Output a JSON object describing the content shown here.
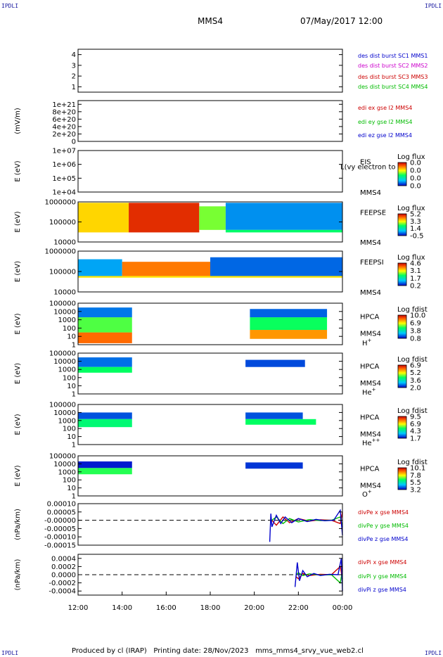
{
  "header": {
    "corner_label": "IPDLI",
    "mission": "MMS4",
    "datetime": "07/May/2017 12:00"
  },
  "footer": {
    "produced_by": "Produced by cl (IRAP)",
    "printing_date": "Printing date: 28/Nov/2023",
    "file_name": "mms_mms4_srvy_vue_web2.cl"
  },
  "x_axis": {
    "ticks": [
      "12:00",
      "14:00",
      "16:00",
      "18:00",
      "20:00",
      "22:00",
      "00:00"
    ],
    "hours": [
      12,
      14,
      16,
      18,
      20,
      22,
      24
    ]
  },
  "chart_data": [
    {
      "type": "line",
      "id": "des-dist",
      "ylabel": "",
      "ylim": [
        0.5,
        4.5
      ],
      "yticks": [
        "1",
        "2",
        "3",
        "4"
      ],
      "series": [
        {
          "name": "des dist burst SC1 MMS1",
          "color": "#0000cc",
          "values": []
        },
        {
          "name": "des dist burst SC2 MMS2",
          "color": "#cc00cc",
          "values": []
        },
        {
          "name": "des dist burst SC3 MMS3",
          "color": "#cc0000",
          "values": []
        },
        {
          "name": "des dist burst SC4 MMS4",
          "color": "#00bb00",
          "values": []
        }
      ]
    },
    {
      "type": "line",
      "id": "edi-e",
      "ylabel": "(mV/m)",
      "ylim": [
        0,
        1.1e+21
      ],
      "yticks": [
        "0",
        "2e+20",
        "4e+20",
        "6e+20",
        "8e+20",
        "1e+21"
      ],
      "series": [
        {
          "name": "edi ex gse l2 MMS4",
          "color": "#cc0000",
          "values": []
        },
        {
          "name": "edi ey gse l2 MMS4",
          "color": "#00bb00",
          "values": []
        },
        {
          "name": "edi ez gse l2 MMS4",
          "color": "#0000cc",
          "values": []
        }
      ]
    },
    {
      "type": "heatmap",
      "id": "eis",
      "ylabel": "E (eV)",
      "log_y": true,
      "ylim": [
        10000.0,
        10000000.0
      ],
      "yticks": [
        "1e+04",
        "1e+05",
        "1e+06",
        "1e+07"
      ],
      "instrument": "EIS",
      "spacecraft": "MMS4",
      "overlay_text": "L(vy electron to",
      "colorbar": {
        "title": "Log flux",
        "ticks": [
          "0.0",
          "0.0",
          "0.0",
          "0.0"
        ]
      },
      "segments": []
    },
    {
      "type": "heatmap",
      "id": "feepse",
      "ylabel": "E (eV)",
      "log_y": true,
      "ylim": [
        10000.0,
        1000000.0
      ],
      "yticks": [
        "10000",
        "100000",
        "1000000"
      ],
      "instrument": "FEEPSE",
      "spacecraft": "MMS4",
      "colorbar": {
        "title": "Log flux",
        "ticks": [
          "5.2",
          "3.3",
          "1.4",
          "-0.5"
        ]
      },
      "segments": [
        {
          "x": [
            12.0,
            14.3
          ],
          "e": [
            30000.0,
            900000.0
          ],
          "flux": 3.5
        },
        {
          "x": [
            14.3,
            17.5
          ],
          "e": [
            30000.0,
            900000.0
          ],
          "flux": 4.8
        },
        {
          "x": [
            17.5,
            18.7
          ],
          "e": [
            40000.0,
            600000.0
          ],
          "flux": 2.6
        },
        {
          "x": [
            18.7,
            24.0
          ],
          "e": [
            40000.0,
            900000.0
          ],
          "flux": 0.4
        },
        {
          "x": [
            18.7,
            24.0
          ],
          "e": [
            30000.0,
            40000.0
          ],
          "flux": 2.0
        }
      ]
    },
    {
      "type": "heatmap",
      "id": "feepsi",
      "ylabel": "E (eV)",
      "log_y": true,
      "ylim": [
        10000.0,
        1000000.0
      ],
      "yticks": [
        "10000",
        "100000",
        "1000000"
      ],
      "instrument": "FEEPSI",
      "spacecraft": "MMS4",
      "colorbar": {
        "title": "Log flux",
        "ticks": [
          "4.6",
          "3.1",
          "1.7",
          "0.2"
        ]
      },
      "segments": [
        {
          "x": [
            12.0,
            14.0
          ],
          "e": [
            60000.0,
            400000.0
          ],
          "flux": 1.0
        },
        {
          "x": [
            14.0,
            18.0
          ],
          "e": [
            60000.0,
            300000.0
          ],
          "flux": 3.8
        },
        {
          "x": [
            18.0,
            24.0
          ],
          "e": [
            60000.0,
            500000.0
          ],
          "flux": 0.7
        },
        {
          "x": [
            12.0,
            24.0
          ],
          "e": [
            50000.0,
            60000.0
          ],
          "flux": 3.2
        }
      ]
    },
    {
      "type": "heatmap",
      "id": "hpca-h",
      "ylabel": "E (eV)",
      "log_y": true,
      "ylim": [
        1,
        100000.0
      ],
      "yticks": [
        "1",
        "10",
        "100",
        "1000",
        "10000",
        "100000"
      ],
      "instrument": "HPCA",
      "spacecraft": "MMS4",
      "species": "H",
      "species_sup": "+",
      "colorbar": {
        "title": "Log fdist",
        "ticks": [
          "10.0",
          "6.9",
          "3.8",
          "0.8"
        ]
      },
      "segments": [
        {
          "x": [
            12.0,
            14.45
          ],
          "e": [
            1.5,
            30
          ],
          "flux": 8.5
        },
        {
          "x": [
            12.0,
            14.45
          ],
          "e": [
            30,
            2000
          ],
          "flux": 5.5
        },
        {
          "x": [
            12.0,
            14.45
          ],
          "e": [
            2000,
            30000
          ],
          "flux": 2.0
        },
        {
          "x": [
            19.8,
            23.3
          ],
          "e": [
            5,
            60
          ],
          "flux": 8.0
        },
        {
          "x": [
            19.8,
            23.3
          ],
          "e": [
            60,
            2000
          ],
          "flux": 5.0
        },
        {
          "x": [
            19.8,
            23.3
          ],
          "e": [
            2000,
            20000
          ],
          "flux": 1.8
        }
      ]
    },
    {
      "type": "heatmap",
      "id": "hpca-he",
      "ylabel": "E (eV)",
      "log_y": true,
      "ylim": [
        1,
        100000.0
      ],
      "yticks": [
        "1",
        "10",
        "100",
        "1000",
        "10000",
        "100000"
      ],
      "instrument": "HPCA",
      "spacecraft": "MMS4",
      "species": "He",
      "species_sup": "+",
      "colorbar": {
        "title": "Log fdist",
        "ticks": [
          "6.9",
          "5.2",
          "3.6",
          "2.0"
        ]
      },
      "segments": [
        {
          "x": [
            12.0,
            14.45
          ],
          "e": [
            2000,
            30000
          ],
          "flux": 2.6
        },
        {
          "x": [
            12.0,
            14.45
          ],
          "e": [
            400,
            2000
          ],
          "flux": 4.2
        },
        {
          "x": [
            19.6,
            22.3
          ],
          "e": [
            2000,
            15000
          ],
          "flux": 2.4
        }
      ]
    },
    {
      "type": "heatmap",
      "id": "hpca-hepp",
      "ylabel": "E (eV)",
      "log_y": true,
      "ylim": [
        1,
        100000.0
      ],
      "yticks": [
        "1",
        "10",
        "100",
        "1000",
        "10000",
        "100000"
      ],
      "instrument": "HPCA",
      "spacecraft": "MMS4",
      "species": "He",
      "species_sup": "++",
      "colorbar": {
        "title": "Log fdist",
        "ticks": [
          "9.5",
          "6.9",
          "4.3",
          "1.7"
        ]
      },
      "segments": [
        {
          "x": [
            12.0,
            14.45
          ],
          "e": [
            1500,
            10000
          ],
          "flux": 2.4
        },
        {
          "x": [
            12.0,
            14.45
          ],
          "e": [
            150,
            1500
          ],
          "flux": 5.0
        },
        {
          "x": [
            19.6,
            22.2
          ],
          "e": [
            1500,
            10000
          ],
          "flux": 2.4
        },
        {
          "x": [
            19.6,
            22.8
          ],
          "e": [
            300,
            1500
          ],
          "flux": 5.2
        }
      ]
    },
    {
      "type": "heatmap",
      "id": "hpca-o",
      "ylabel": "E (eV)",
      "log_y": true,
      "ylim": [
        1,
        100000.0
      ],
      "yticks": [
        "1",
        "10",
        "100",
        "1000",
        "10000",
        "100000"
      ],
      "instrument": "HPCA",
      "spacecraft": "MMS4",
      "species": "O",
      "species_sup": "+",
      "colorbar": {
        "title": "Log fdist",
        "ticks": [
          "10.1",
          "7.8",
          "5.5",
          "3.2"
        ]
      },
      "segments": [
        {
          "x": [
            12.0,
            14.45
          ],
          "e": [
            3000,
            20000
          ],
          "flux": 3.4
        },
        {
          "x": [
            12.0,
            14.45
          ],
          "e": [
            500,
            3000
          ],
          "flux": 6.5
        },
        {
          "x": [
            19.6,
            22.2
          ],
          "e": [
            2500,
            15000
          ],
          "flux": 3.6
        }
      ]
    },
    {
      "type": "line",
      "id": "divpe",
      "ylabel": "(nPa/km)",
      "ylim": [
        -0.00015,
        0.0001
      ],
      "yticks": [
        "-0.00015",
        "-0.00010",
        "-0.00005",
        "-0.00000",
        "0.00005",
        "0.00010"
      ],
      "reference_line": 0,
      "series": [
        {
          "name": "divPe x gse MMS4",
          "color": "#cc0000",
          "x": [
            20.8,
            21.0,
            21.3,
            21.6,
            22.0,
            22.5,
            23.0,
            23.5,
            23.9,
            24.0
          ],
          "values": [
            0.0,
            -3e-05,
            2e-05,
            -1.5e-05,
            1e-05,
            -5e-06,
            3e-06,
            0.0,
            -2e-05,
            5e-05
          ]
        },
        {
          "name": "divPe y gse MMS4",
          "color": "#00bb00",
          "x": [
            20.8,
            21.0,
            21.3,
            21.6,
            22.0,
            22.5,
            23.0,
            23.5,
            23.9,
            24.0
          ],
          "values": [
            0.0,
            2e-05,
            -2e-05,
            1e-05,
            -1e-05,
            4e-06,
            -2e-06,
            0.0,
            2e-05,
            -4e-05
          ]
        },
        {
          "name": "divPe z gse MMS4",
          "color": "#0000cc",
          "x": [
            20.7,
            20.75,
            20.8,
            21.0,
            21.2,
            21.4,
            21.7,
            22.0,
            22.4,
            22.8,
            23.2,
            23.6,
            23.9,
            24.0
          ],
          "values": [
            -0.00013,
            4e-05,
            -4e-05,
            3e-05,
            -2e-05,
            2e-05,
            -1.5e-05,
            1e-05,
            -8e-06,
            5e-06,
            -3e-06,
            0.0,
            6e-05,
            -9e-05
          ]
        }
      ]
    },
    {
      "type": "line",
      "id": "divpi",
      "ylabel": "(nPa/km)",
      "ylim": [
        -0.0005,
        0.0005
      ],
      "yticks": [
        "-0.0004",
        "-0.0002",
        "0.0000",
        "0.0002",
        "0.0004"
      ],
      "reference_line": 0,
      "series": [
        {
          "name": "divPi x gse MMS4",
          "color": "#cc0000",
          "x": [
            21.9,
            22.0,
            22.2,
            22.5,
            23.0,
            23.5,
            23.9,
            24.0
          ],
          "values": [
            -5e-05,
            -0.0001,
            3e-05,
            -2e-05,
            1e-05,
            0.0,
            0.0002,
            -0.0001
          ]
        },
        {
          "name": "divPi y gse MMS4",
          "color": "#00bb00",
          "x": [
            21.9,
            22.0,
            22.2,
            22.5,
            23.0,
            23.5,
            23.9,
            24.0
          ],
          "values": [
            0.0,
            5e-05,
            -2e-05,
            2e-05,
            -1e-05,
            0.0,
            -0.0002,
            0.0001
          ]
        },
        {
          "name": "divPi z gse MMS4",
          "color": "#0000cc",
          "x": [
            21.85,
            21.95,
            22.05,
            22.2,
            22.4,
            22.7,
            23.0,
            23.4,
            23.8,
            23.95,
            24.0
          ],
          "values": [
            -0.0003,
            0.0003,
            -0.00015,
            0.0001,
            -5e-05,
            3e-05,
            -2e-05,
            1e-05,
            0.0,
            0.0004,
            -0.0004
          ]
        }
      ]
    }
  ]
}
